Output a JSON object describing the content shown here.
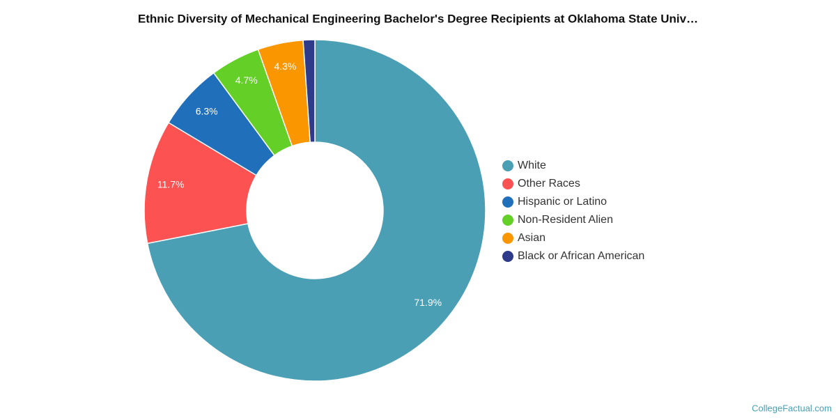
{
  "chart_data": {
    "type": "donut",
    "title": "Ethnic Diversity of Mechanical Engineering Bachelor's Degree Recipients at Oklahoma State Univ…",
    "categories": [
      "White",
      "Other Races",
      "Hispanic or Latino",
      "Non-Resident Alien",
      "Asian",
      "Black or African American"
    ],
    "values": [
      71.9,
      11.7,
      6.3,
      4.7,
      4.3,
      1.1
    ],
    "value_labels": [
      "71.9%",
      "11.7%",
      "6.3%",
      "4.7%",
      "4.3%",
      null
    ],
    "colors": [
      "#4a9fb5",
      "#fc5252",
      "#1f6fba",
      "#63cf27",
      "#fa9600",
      "#2e3a8a"
    ],
    "legend": "right"
  },
  "footer": "CollegeFactual.com"
}
